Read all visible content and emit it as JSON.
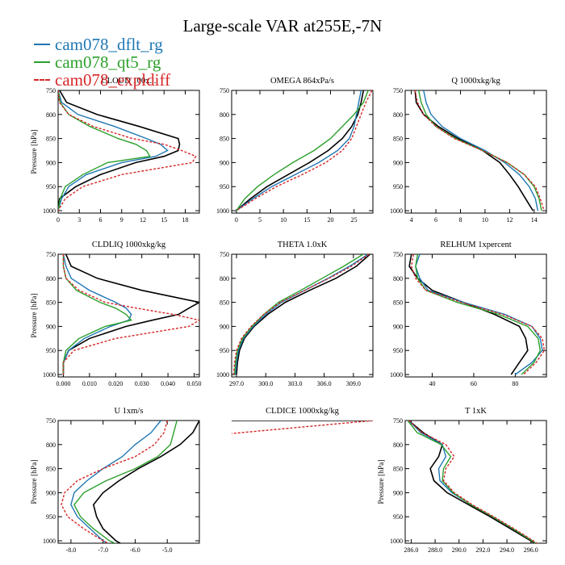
{
  "title": "Large-scale VAR at255E,-7N",
  "legend": [
    {
      "label": "cam078_dflt_rg",
      "color": "#1f77b4",
      "dash": false
    },
    {
      "label": "cam078_qt5_rg",
      "color": "#2ca02c",
      "dash": false
    },
    {
      "label": "cam078_expldiff",
      "color": "#d62728",
      "dash": true
    }
  ],
  "chart_data": [
    {
      "type": "line",
      "title": "CLOUD 100x...",
      "ylabel": "Pressure [hPa]",
      "xlim": [
        0,
        20
      ],
      "ylim": [
        750,
        1005
      ],
      "xticks": [
        0,
        3,
        6,
        9,
        12,
        15,
        18
      ],
      "xtick_labels": [
        "0",
        "3",
        "6",
        "9",
        "12",
        "15",
        "18"
      ],
      "yticks": [
        750,
        800,
        850,
        900,
        950,
        1000
      ],
      "y": [
        750,
        775,
        800,
        825,
        850,
        862,
        875,
        887,
        900,
        925,
        950,
        975,
        1000
      ],
      "series": [
        {
          "name": "black",
          "color": "#000000",
          "x": [
            0.2,
            1.2,
            5.5,
            11.5,
            17.0,
            17.2,
            17.0,
            15.0,
            11.0,
            6.0,
            2.5,
            0.2,
            0
          ]
        },
        {
          "name": "cam078_dflt_rg",
          "color": "#1f77b4",
          "x": [
            0,
            0.5,
            2.8,
            8.0,
            12.5,
            14.5,
            15.5,
            13.8,
            9.0,
            4.0,
            1.5,
            0.5,
            0
          ]
        },
        {
          "name": "cam078_qt5_rg",
          "color": "#2ca02c",
          "x": [
            0,
            0.3,
            1.5,
            4.5,
            8.5,
            11.0,
            12.5,
            13.0,
            7.0,
            3.5,
            1.0,
            0.3,
            0
          ]
        },
        {
          "name": "cam078_expldiff",
          "color": "#d62728",
          "dash": true,
          "x": [
            0,
            0.2,
            1.5,
            5.0,
            10.5,
            15.0,
            17.5,
            19.5,
            19.0,
            9.0,
            3.5,
            1.0,
            0
          ]
        }
      ]
    },
    {
      "type": "line",
      "title": "OMEGA  864xPa/s",
      "ylabel": "",
      "xlim": [
        -1,
        29
      ],
      "ylim": [
        750,
        1005
      ],
      "xticks": [
        0,
        5,
        10,
        15,
        20,
        25
      ],
      "xtick_labels": [
        "0",
        "5",
        "10",
        "15",
        "20",
        "25"
      ],
      "yticks": [
        750,
        800,
        850,
        900,
        950,
        1000
      ],
      "y": [
        750,
        775,
        800,
        825,
        850,
        875,
        900,
        925,
        950,
        975,
        1000
      ],
      "series": [
        {
          "name": "black",
          "color": "#000000",
          "x": [
            27.0,
            26.5,
            25.8,
            24.5,
            22.5,
            19.5,
            15.5,
            11.0,
            6.5,
            3.0,
            0
          ]
        },
        {
          "name": "cam078_dflt_rg",
          "color": "#1f77b4",
          "x": [
            26.5,
            26.0,
            25.5,
            25.0,
            24.0,
            21.5,
            17.5,
            12.5,
            7.5,
            3.5,
            0
          ]
        },
        {
          "name": "cam078_qt5_rg",
          "color": "#2ca02c",
          "x": [
            28.0,
            27.0,
            25.0,
            22.5,
            20.0,
            16.5,
            12.0,
            8.0,
            4.5,
            1.8,
            0
          ]
        },
        {
          "name": "cam078_expldiff",
          "color": "#d62728",
          "dash": true,
          "x": [
            28.8,
            27.5,
            26.5,
            25.5,
            24.5,
            22.5,
            19.0,
            14.0,
            8.5,
            4.0,
            0
          ]
        }
      ]
    },
    {
      "type": "line",
      "title": "Q  1000xkg/kg",
      "ylabel": "",
      "xlim": [
        3.5,
        15
      ],
      "ylim": [
        750,
        1005
      ],
      "xticks": [
        4,
        6,
        8,
        10,
        12,
        14
      ],
      "xtick_labels": [
        "4",
        "6",
        "8",
        "10",
        "12",
        "14"
      ],
      "yticks": [
        750,
        800,
        850,
        900,
        950,
        1000
      ],
      "y": [
        750,
        775,
        800,
        825,
        850,
        875,
        900,
        925,
        950,
        975,
        1000
      ],
      "series": [
        {
          "name": "black",
          "color": "#000000",
          "x": [
            4.3,
            4.4,
            5.0,
            6.2,
            7.8,
            9.8,
            11.2,
            12.0,
            12.7,
            13.3,
            13.9
          ]
        },
        {
          "name": "cam078_dflt_rg",
          "color": "#1f77b4",
          "x": [
            5.0,
            5.2,
            5.6,
            6.5,
            8.0,
            10.0,
            11.6,
            12.8,
            13.6,
            14.1,
            14.3
          ]
        },
        {
          "name": "cam078_qt5_rg",
          "color": "#2ca02c",
          "x": [
            4.6,
            4.8,
            5.2,
            6.0,
            7.6,
            9.8,
            11.8,
            13.2,
            14.0,
            14.4,
            14.6
          ]
        },
        {
          "name": "cam078_expldiff",
          "color": "#d62728",
          "dash": true,
          "x": [
            4.3,
            4.5,
            5.0,
            6.0,
            7.5,
            9.8,
            11.8,
            13.2,
            14.1,
            14.5,
            14.8
          ]
        }
      ]
    },
    {
      "type": "line",
      "title": "CLDLIQ  1000xkg/kg",
      "ylabel": "Pressure [hPa]",
      "xlim": [
        -0.002,
        0.052
      ],
      "ylim": [
        750,
        1005
      ],
      "xticks": [
        0.0,
        0.01,
        0.02,
        0.03,
        0.04,
        0.05
      ],
      "xtick_labels": [
        "0.000",
        "0.010",
        "0.020",
        "0.030",
        "0.040",
        "0.050"
      ],
      "yticks": [
        750,
        800,
        850,
        900,
        950,
        1000
      ],
      "y": [
        750,
        775,
        800,
        825,
        850,
        862,
        875,
        887,
        900,
        925,
        950,
        975,
        1000
      ],
      "series": [
        {
          "name": "black",
          "color": "#000000",
          "x": [
            0.001,
            0.003,
            0.013,
            0.03,
            0.052,
            0.048,
            0.044,
            0.034,
            0.024,
            0.01,
            0.002,
            0,
            0
          ]
        },
        {
          "name": "cam078_dflt_rg",
          "color": "#1f77b4",
          "x": [
            0,
            0.001,
            0.003,
            0.01,
            0.02,
            0.024,
            0.026,
            0.025,
            0.018,
            0.008,
            0.002,
            0,
            0
          ]
        },
        {
          "name": "cam078_qt5_rg",
          "color": "#2ca02c",
          "x": [
            0,
            0,
            0.001,
            0.005,
            0.014,
            0.02,
            0.024,
            0.026,
            0.016,
            0.006,
            0.001,
            0,
            0
          ]
        },
        {
          "name": "cam078_expldiff",
          "color": "#d62728",
          "dash": true,
          "x": [
            0,
            0,
            0.001,
            0.006,
            0.016,
            0.028,
            0.042,
            0.052,
            0.048,
            0.02,
            0.004,
            0,
            0
          ]
        }
      ]
    },
    {
      "type": "line",
      "title": "THETA  1.0xK",
      "ylabel": "",
      "xlim": [
        296.5,
        311
      ],
      "ylim": [
        750,
        1005
      ],
      "xticks": [
        297,
        300,
        303,
        306,
        309
      ],
      "xtick_labels": [
        "297.0",
        "300.0",
        "303.0",
        "306.0",
        "309.0"
      ],
      "yticks": [
        750,
        800,
        850,
        900,
        950,
        1000
      ],
      "y": [
        750,
        775,
        800,
        825,
        850,
        875,
        900,
        925,
        950,
        975,
        1000
      ],
      "series": [
        {
          "name": "black",
          "color": "#000000",
          "x": [
            310.7,
            309.3,
            307.2,
            304.5,
            302.0,
            300.2,
            298.8,
            297.8,
            297.3,
            297.1,
            297.0
          ]
        },
        {
          "name": "cam078_dflt_rg",
          "color": "#1f77b4",
          "x": [
            310.5,
            308.6,
            306.4,
            304.0,
            301.6,
            300.0,
            298.7,
            297.7,
            297.2,
            297.0,
            296.9
          ]
        },
        {
          "name": "cam078_qt5_rg",
          "color": "#2ca02c",
          "x": [
            310.0,
            308.0,
            305.8,
            303.6,
            301.3,
            299.8,
            298.6,
            297.6,
            297.1,
            296.9,
            296.8
          ]
        },
        {
          "name": "cam078_expldiff",
          "color": "#d62728",
          "dash": true,
          "x": [
            310.6,
            308.8,
            306.5,
            304.0,
            301.5,
            299.8,
            298.5,
            297.5,
            297.0,
            296.8,
            296.7
          ]
        }
      ]
    },
    {
      "type": "line",
      "title": "RELHUM  1xpercent",
      "ylabel": "",
      "xlim": [
        27,
        95
      ],
      "ylim": [
        750,
        1005
      ],
      "xticks": [
        40,
        60,
        80
      ],
      "xtick_labels": [
        "40",
        "60",
        "80"
      ],
      "yticks": [
        750,
        800,
        850,
        900,
        950,
        1000
      ],
      "y": [
        750,
        775,
        800,
        825,
        850,
        875,
        900,
        925,
        950,
        975,
        1000
      ],
      "series": [
        {
          "name": "black",
          "color": "#000000",
          "x": [
            30.0,
            29.0,
            33.0,
            40.0,
            55.0,
            70.0,
            82.0,
            85.0,
            86.0,
            82.0,
            78.0
          ]
        },
        {
          "name": "cam078_dflt_rg",
          "color": "#1f77b4",
          "x": [
            34.0,
            32.0,
            34.0,
            38.0,
            55.0,
            75.0,
            88.0,
            92.0,
            93.0,
            88.0,
            80.0
          ]
        },
        {
          "name": "cam078_qt5_rg",
          "color": "#2ca02c",
          "x": [
            33.0,
            32.0,
            33.0,
            37.0,
            52.0,
            72.0,
            86.0,
            91.0,
            92.0,
            89.0,
            83.0
          ]
        },
        {
          "name": "cam078_expldiff",
          "color": "#d62728",
          "dash": true,
          "x": [
            31.0,
            30.0,
            32.0,
            37.0,
            54.0,
            74.0,
            88.0,
            93.0,
            94.0,
            90.0,
            84.0
          ]
        }
      ]
    },
    {
      "type": "line",
      "title": "U  1xm/s",
      "ylabel": "Pressure [hPa]",
      "xlim": [
        -8.4,
        -4.0
      ],
      "ylim": [
        750,
        1005
      ],
      "xticks": [
        -8.0,
        -7.0,
        -6.0,
        -5.0
      ],
      "xtick_labels": [
        "-8.0",
        "-7.0",
        "-6.0",
        "-5.0"
      ],
      "yticks": [
        750,
        800,
        850,
        900,
        950,
        1000
      ],
      "y": [
        750,
        775,
        800,
        825,
        850,
        875,
        900,
        925,
        950,
        975,
        1000,
        1015
      ],
      "series": [
        {
          "name": "black",
          "color": "#000000",
          "x": [
            -4.0,
            -4.2,
            -4.6,
            -5.2,
            -5.9,
            -6.5,
            -7.0,
            -7.3,
            -7.2,
            -7.0,
            -6.6,
            -6.2
          ]
        },
        {
          "name": "cam078_dflt_rg",
          "color": "#1f77b4",
          "x": [
            -5.2,
            -5.5,
            -6.0,
            -6.4,
            -7.0,
            -7.5,
            -7.9,
            -8.0,
            -7.8,
            -7.4,
            -7.0,
            -6.6
          ]
        },
        {
          "name": "cam078_qt5_rg",
          "color": "#2ca02c",
          "x": [
            -4.7,
            -4.8,
            -4.9,
            -5.3,
            -6.0,
            -6.9,
            -7.6,
            -7.9,
            -7.7,
            -7.3,
            -6.8,
            -6.3
          ]
        },
        {
          "name": "cam078_expldiff",
          "color": "#d62728",
          "dash": true,
          "x": [
            -5.0,
            -5.1,
            -5.4,
            -6.0,
            -7.0,
            -7.8,
            -8.2,
            -8.3,
            -8.1,
            -7.6,
            -7.0,
            -6.5
          ]
        }
      ]
    },
    {
      "type": "line",
      "title": "CLDICE  1000xkg/kg",
      "ylabel": "",
      "xlim": [
        0,
        1
      ],
      "ylim": [
        750,
        1005
      ],
      "hide_axes": true,
      "xticks": [],
      "xtick_labels": [],
      "yticks": [],
      "y": [
        750,
        777
      ],
      "series": [
        {
          "name": "black",
          "color": "#000000",
          "x": [
            0.0,
            1.0
          ],
          "y_override": [
            750,
            750
          ]
        },
        {
          "name": "cam078_expldiff",
          "color": "#d62728",
          "dash": true,
          "x": [
            1.0,
            0.0
          ]
        }
      ]
    },
    {
      "type": "line",
      "title": "T  1xK",
      "ylabel": "Pressure [hPa]",
      "xlim": [
        285.5,
        297.3
      ],
      "ylim": [
        750,
        1005
      ],
      "xticks": [
        286,
        288,
        290,
        292,
        294,
        296
      ],
      "xtick_labels": [
        "286.0",
        "288.0",
        "290.0",
        "292.0",
        "294.0",
        "296.0"
      ],
      "yticks": [
        750,
        800,
        850,
        900,
        950,
        1000
      ],
      "y": [
        750,
        775,
        800,
        825,
        850,
        875,
        900,
        925,
        950,
        975,
        1000,
        1015
      ],
      "series": [
        {
          "name": "black",
          "color": "#000000",
          "x": [
            285.8,
            287.0,
            288.6,
            288.3,
            287.6,
            287.9,
            289.0,
            290.8,
            292.6,
            294.3,
            296.0,
            297.0
          ]
        },
        {
          "name": "cam078_dflt_rg",
          "color": "#1f77b4",
          "x": [
            285.8,
            286.8,
            288.6,
            288.9,
            288.3,
            288.4,
            289.4,
            291.0,
            292.8,
            294.5,
            296.1,
            297.0
          ]
        },
        {
          "name": "cam078_qt5_rg",
          "color": "#2ca02c",
          "x": [
            285.7,
            286.5,
            288.5,
            289.3,
            288.7,
            288.6,
            289.5,
            291.0,
            292.8,
            294.5,
            296.1,
            297.0
          ]
        },
        {
          "name": "cam078_expldiff",
          "color": "#d62728",
          "dash": true,
          "x": [
            285.8,
            286.9,
            288.9,
            289.6,
            288.9,
            288.7,
            289.6,
            291.1,
            292.9,
            294.6,
            296.2,
            297.1
          ]
        }
      ]
    }
  ]
}
